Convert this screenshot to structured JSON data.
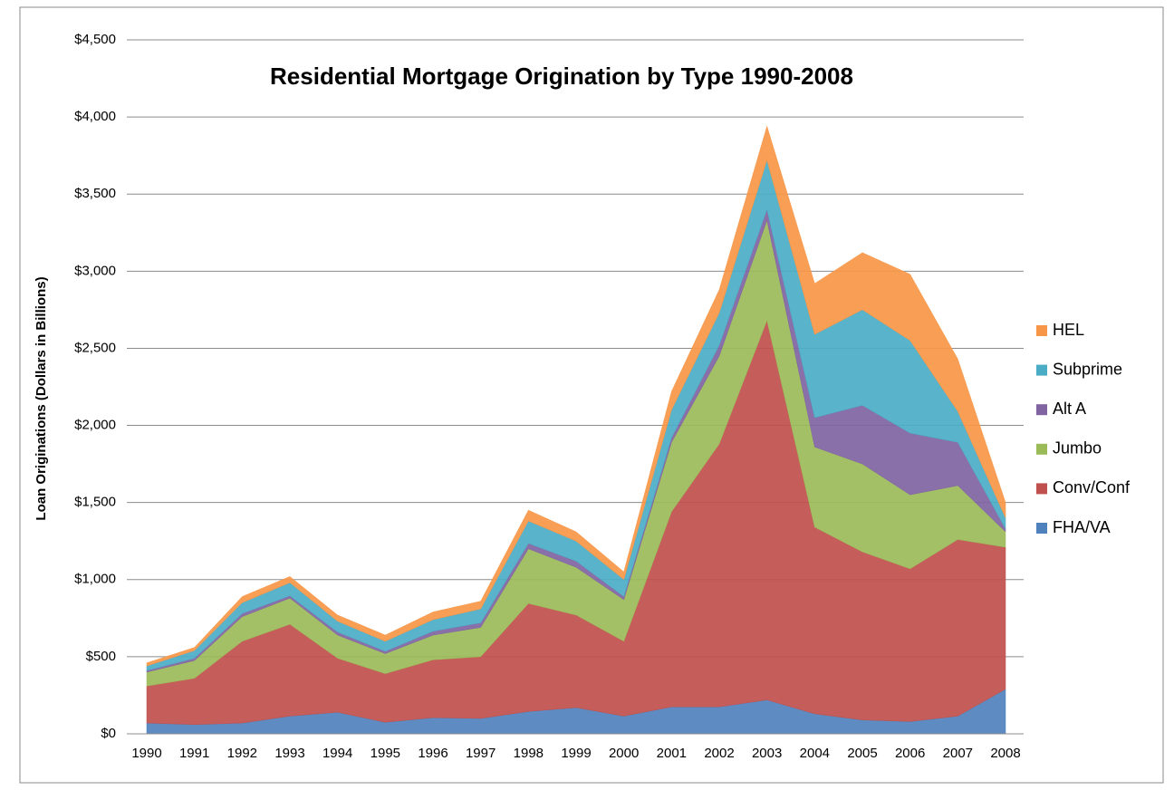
{
  "chart_data": {
    "type": "stacked-area",
    "title": "Residential Mortgage Origination by Type 1990-2008",
    "y_label": "Loan Originations (Dollars in Billions)",
    "categories": [
      "1990",
      "1991",
      "1992",
      "1993",
      "1994",
      "1995",
      "1996",
      "1997",
      "1998",
      "1999",
      "2000",
      "2001",
      "2002",
      "2003",
      "2004",
      "2005",
      "2006",
      "2007",
      "2008"
    ],
    "series": [
      {
        "name": "FHA/VA",
        "color": "#4f81bd",
        "values": [
          70,
          60,
          70,
          115,
          140,
          75,
          105,
          100,
          145,
          170,
          115,
          175,
          175,
          220,
          130,
          90,
          80,
          115,
          290
        ]
      },
      {
        "name": "Conv/Conf",
        "color": "#c0504d",
        "values": [
          240,
          300,
          530,
          595,
          350,
          315,
          375,
          400,
          700,
          600,
          485,
          1265,
          1705,
          2460,
          1210,
          1090,
          990,
          1145,
          920
        ]
      },
      {
        "name": "Jumbo",
        "color": "#9bbb59",
        "values": [
          90,
          115,
          160,
          170,
          150,
          130,
          160,
          190,
          355,
          310,
          270,
          450,
          570,
          650,
          520,
          570,
          480,
          350,
          100
        ]
      },
      {
        "name": "Alt A",
        "color": "#8064a2",
        "values": [
          10,
          15,
          20,
          15,
          20,
          15,
          25,
          30,
          35,
          40,
          20,
          30,
          70,
          70,
          190,
          380,
          400,
          280,
          20
        ]
      },
      {
        "name": "Subprime",
        "color": "#4bacc6",
        "values": [
          30,
          50,
          70,
          85,
          70,
          65,
          75,
          90,
          145,
          130,
          110,
          180,
          210,
          320,
          540,
          620,
          600,
          200,
          70
        ]
      },
      {
        "name": "HEL",
        "color": "#f79646",
        "values": [
          20,
          20,
          40,
          40,
          40,
          40,
          50,
          50,
          70,
          60,
          50,
          120,
          150,
          220,
          330,
          370,
          430,
          340,
          100
        ]
      }
    ],
    "ylim": [
      0,
      4500
    ],
    "yticks": [
      {
        "value": 0,
        "label": "$0"
      },
      {
        "value": 500,
        "label": "$500"
      },
      {
        "value": 1000,
        "label": "$1,000"
      },
      {
        "value": 1500,
        "label": "$1,500"
      },
      {
        "value": 2000,
        "label": "$2,000"
      },
      {
        "value": 2500,
        "label": "$2,500"
      },
      {
        "value": 3000,
        "label": "$3,000"
      },
      {
        "value": 3500,
        "label": "$3,500"
      },
      {
        "value": 4000,
        "label": "$4,000"
      },
      {
        "value": 4500,
        "label": "$4,500"
      }
    ],
    "grid": true,
    "legend": "right"
  }
}
